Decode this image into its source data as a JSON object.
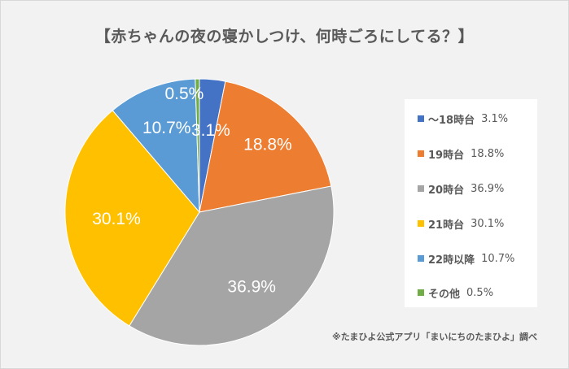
{
  "chart_data": {
    "type": "pie",
    "title": "【赤ちゃんの夜の寝かしつけ、何時ごろにしてる？】",
    "categories": [
      "～18時台",
      "19時台",
      "20時台",
      "21時台",
      "22時以降",
      "その他"
    ],
    "values": [
      3.1,
      18.8,
      36.9,
      30.1,
      10.7,
      0.5
    ],
    "data_labels": [
      "3.1%",
      "18.8%",
      "36.9%",
      "30.1%",
      "10.7%",
      "0.5%"
    ],
    "colors": [
      "#4472c4",
      "#ed7d31",
      "#a5a5a5",
      "#ffc000",
      "#5b9bd5",
      "#70ad47"
    ],
    "start_angle_deg": 0,
    "direction": "clockwise",
    "legend": {
      "position": "right",
      "entries": [
        {
          "label": "～18時台",
          "value": "3.1%"
        },
        {
          "label": "19時台",
          "value": "18.8%"
        },
        {
          "label": "20時台",
          "value": "36.9%"
        },
        {
          "label": "21時台",
          "value": "30.1%"
        },
        {
          "label": "22時以降",
          "value": "10.7%"
        },
        {
          "label": "その他",
          "value": "0.5%"
        }
      ]
    },
    "note": "※たまひよ公式アプリ「まいにちのたまひよ」調べ"
  }
}
